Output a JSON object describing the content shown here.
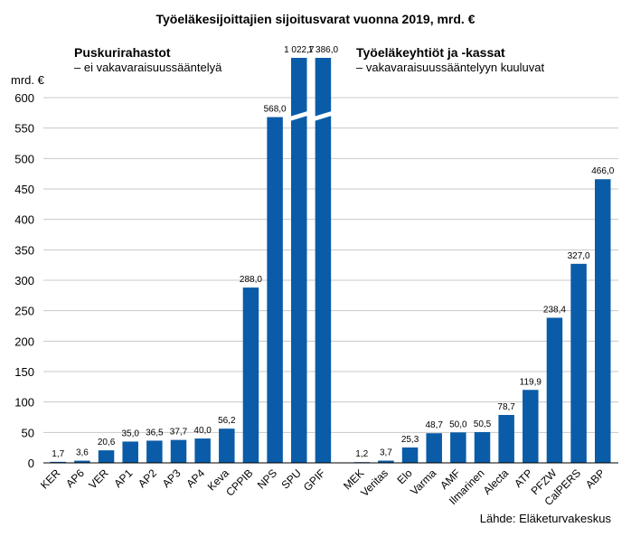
{
  "chart_data": {
    "type": "bar",
    "title": "Työeläkesijoittajien sijoitusvarat vuonna 2019, mrd. €",
    "ylabel": "mrd. €",
    "ylim": [
      0,
      600
    ],
    "yticks": [
      "0",
      "50",
      "100",
      "150",
      "200",
      "250",
      "300",
      "350",
      "400",
      "450",
      "500",
      "550",
      "600"
    ],
    "ytick_values": [
      0,
      50,
      100,
      150,
      200,
      250,
      300,
      350,
      400,
      450,
      500,
      550,
      600
    ],
    "axis_break": true,
    "grid": true,
    "bar_color": "#0a5ca8",
    "source": "Lähde: Eläketurvakeskus",
    "groups": [
      {
        "title": "Puskurirahastot",
        "subtitle": "– ei vakavaraisuussääntelyä",
        "categories": [
          "KER",
          "AP6",
          "VER",
          "AP1",
          "AP2",
          "AP3",
          "AP4",
          "Keva",
          "CPPIB",
          "NPS",
          "SPU",
          "GPIF"
        ],
        "values": [
          1.7,
          3.6,
          20.6,
          35.0,
          36.5,
          37.7,
          40.0,
          56.2,
          288.0,
          568.0,
          1022.7,
          1386.0
        ],
        "labels": [
          "1,7",
          "3,6",
          "20,6",
          "35,0",
          "36,5",
          "37,7",
          "40,0",
          "56,2",
          "288,0",
          "568,0",
          "1 022,7",
          "1 386,0"
        ]
      },
      {
        "title": "Työeläkeyhtiöt ja -kassat",
        "subtitle": "– vakavaraisuussääntelyyn kuuluvat",
        "categories": [
          "MEK",
          "Veritas",
          "Elo",
          "Varma",
          "AMF",
          "Ilmarinen",
          "Alecta",
          "ATP",
          "PFZW",
          "CalPERS",
          "ABP"
        ],
        "values": [
          1.2,
          3.7,
          25.3,
          48.7,
          50.0,
          50.5,
          78.7,
          119.9,
          238.4,
          327.0,
          466.0
        ],
        "labels": [
          "1,2",
          "3,7",
          "25,3",
          "48,7",
          "50,0",
          "50,5",
          "78,7",
          "119,9",
          "238,4",
          "327,0",
          "466,0"
        ]
      }
    ]
  }
}
